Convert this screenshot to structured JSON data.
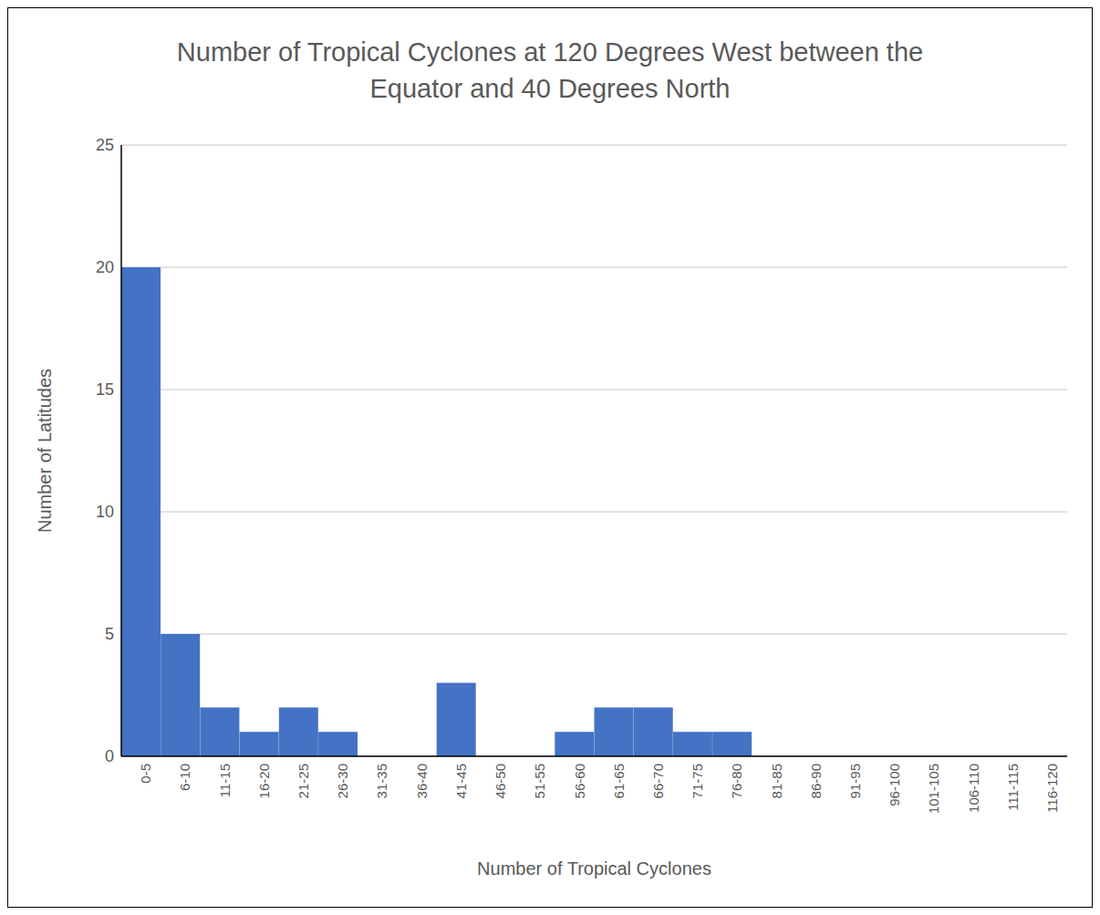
{
  "chart_data": {
    "type": "bar",
    "title": "Number of Tropical Cyclones at 120 Degrees West between the Equator and 40 Degrees North",
    "x_label": "Number of Tropical Cyclones",
    "y_label": "Number of Latitudes",
    "categories": [
      "0-5",
      "6-10",
      "11-15",
      "16-20",
      "21-25",
      "26-30",
      "31-35",
      "36-40",
      "41-45",
      "46-50",
      "51-55",
      "56-60",
      "61-65",
      "66-70",
      "71-75",
      "76-80",
      "81-85",
      "86-90",
      "91-95",
      "96-100",
      "101-105",
      "106-110",
      "111-115",
      "116-120"
    ],
    "values": [
      20,
      5,
      2,
      1,
      2,
      1,
      0,
      0,
      3,
      0,
      0,
      1,
      2,
      2,
      1,
      1,
      0,
      0,
      0,
      0,
      0,
      0,
      0,
      0
    ],
    "color": "#4472c4",
    "ylim": [
      0,
      25
    ],
    "yticks": [
      0,
      5,
      10,
      15,
      20,
      25
    ],
    "grid": true
  }
}
